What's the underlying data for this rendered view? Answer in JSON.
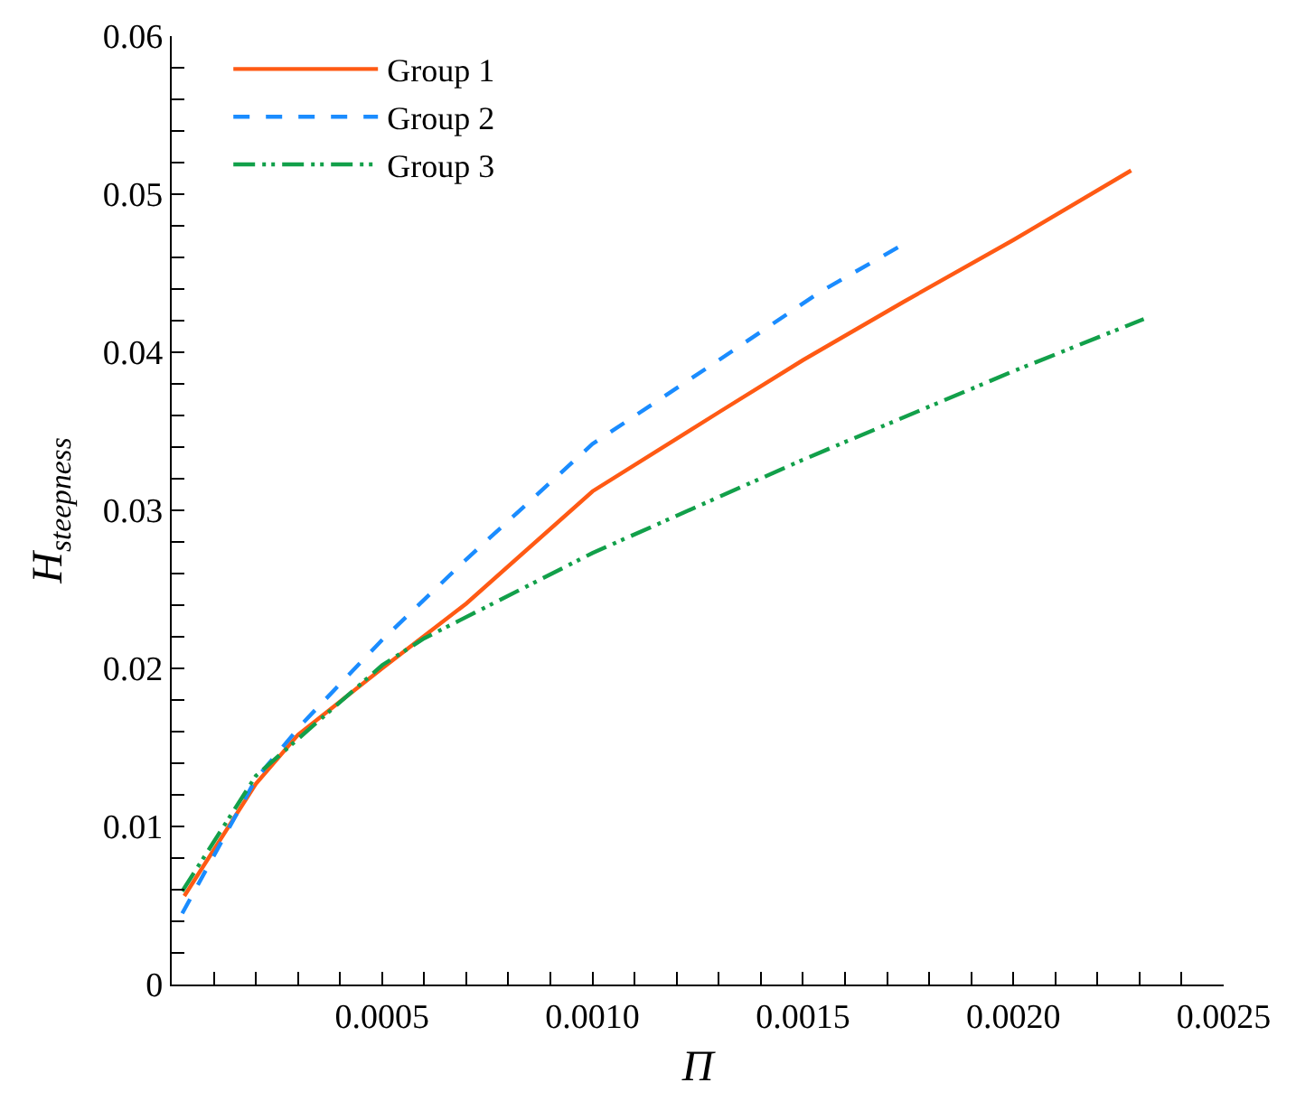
{
  "chart_data": {
    "type": "line",
    "xlabel": "Π",
    "ylabel": "H$_{steepness}$",
    "legend": "top left",
    "marker": "none",
    "xlim": [
      0,
      0.0025
    ],
    "ylim": [
      0,
      0.06
    ],
    "xticks": [
      {
        "value": 0,
        "label": null
      },
      {
        "value": 0.0001,
        "label": null
      },
      {
        "value": 0.0002,
        "label": null
      },
      {
        "value": 0.0003,
        "label": null
      },
      {
        "value": 0.0004,
        "label": null
      },
      {
        "value": 0.0005,
        "label": "0.0005"
      },
      {
        "value": 0.0006,
        "label": null
      },
      {
        "value": 0.0007,
        "label": null
      },
      {
        "value": 0.0008,
        "label": null
      },
      {
        "value": 0.0009,
        "label": null
      },
      {
        "value": 0.001,
        "label": "0.0010"
      },
      {
        "value": 0.0011,
        "label": null
      },
      {
        "value": 0.0012,
        "label": null
      },
      {
        "value": 0.0013,
        "label": null
      },
      {
        "value": 0.0014,
        "label": null
      },
      {
        "value": 0.0015,
        "label": "0.0015"
      },
      {
        "value": 0.0016,
        "label": null
      },
      {
        "value": 0.0017,
        "label": null
      },
      {
        "value": 0.0018,
        "label": null
      },
      {
        "value": 0.0019,
        "label": null
      },
      {
        "value": 0.002,
        "label": "0.0020"
      },
      {
        "value": 0.0021,
        "label": null
      },
      {
        "value": 0.0022,
        "label": null
      },
      {
        "value": 0.0023,
        "label": null
      },
      {
        "value": 0.0024,
        "label": null
      },
      {
        "value": 0.0025,
        "label": "0.0025"
      }
    ],
    "yticks": [
      0,
      {
        "value": 0.002,
        "label": null
      },
      {
        "value": 0.004,
        "label": null
      },
      {
        "value": 0.006,
        "label": null
      },
      {
        "value": 0.008,
        "label": null
      },
      {
        "value": 0.01,
        "label": "0.01"
      },
      {
        "value": 0.012,
        "label": null
      },
      {
        "value": 0.014,
        "label": null
      },
      {
        "value": 0.016,
        "label": null
      },
      {
        "value": 0.018,
        "label": null
      },
      {
        "value": 0.02,
        "label": "0.02"
      },
      {
        "value": 0.022,
        "label": null
      },
      {
        "value": 0.024,
        "label": null
      },
      {
        "value": 0.026,
        "label": null
      },
      {
        "value": 0.028,
        "label": null
      },
      {
        "value": 0.03,
        "label": "0.03"
      },
      {
        "value": 0.032,
        "label": null
      },
      {
        "value": 0.034,
        "label": null
      },
      {
        "value": 0.036,
        "label": null
      },
      {
        "value": 0.038,
        "label": null
      },
      {
        "value": 0.04,
        "label": "0.04"
      },
      {
        "value": 0.042,
        "label": null
      },
      {
        "value": 0.044,
        "label": null
      },
      {
        "value": 0.046,
        "label": null
      },
      {
        "value": 0.048,
        "label": null
      },
      {
        "value": 0.05,
        "label": "0.05"
      },
      {
        "value": 0.052,
        "label": null
      },
      {
        "value": 0.054,
        "label": null
      },
      {
        "value": 0.056,
        "label": null
      },
      {
        "value": 0.058,
        "label": null
      },
      {
        "value": 0.06,
        "label": "0.06"
      }
    ],
    "series": [
      {
        "name": "Group 1",
        "color": "#ff5a14",
        "line_style": "solid",
        "x": [
          3e-05,
          0.0002,
          0.0003,
          0.0005,
          0.0007,
          0.001,
          0.0013,
          0.0015,
          0.00174,
          0.002,
          0.00228
        ],
        "values": [
          0.0056,
          0.0127,
          0.0158,
          0.02,
          0.0241,
          0.0312,
          0.0362,
          0.0395,
          0.0432,
          0.0471,
          0.0515
        ]
      },
      {
        "name": "Group 2",
        "color": "#1a8cff",
        "line_style": "dashed",
        "x": [
          2.5e-05,
          0.0002,
          0.00031,
          0.0005,
          0.0007,
          0.001,
          0.0013,
          0.00154,
          0.00173
        ],
        "values": [
          0.0045,
          0.013,
          0.0165,
          0.0218,
          0.0269,
          0.0342,
          0.0395,
          0.0438,
          0.0467
        ]
      },
      {
        "name": "Group 3",
        "color": "#12a04a",
        "line_style": "dashdot",
        "x": [
          2.5e-05,
          0.0002,
          0.0005,
          0.0006,
          0.001,
          0.0015,
          0.002,
          0.00231
        ],
        "values": [
          0.0059,
          0.0132,
          0.0202,
          0.0219,
          0.0273,
          0.0332,
          0.0388,
          0.0421
        ]
      }
    ]
  }
}
